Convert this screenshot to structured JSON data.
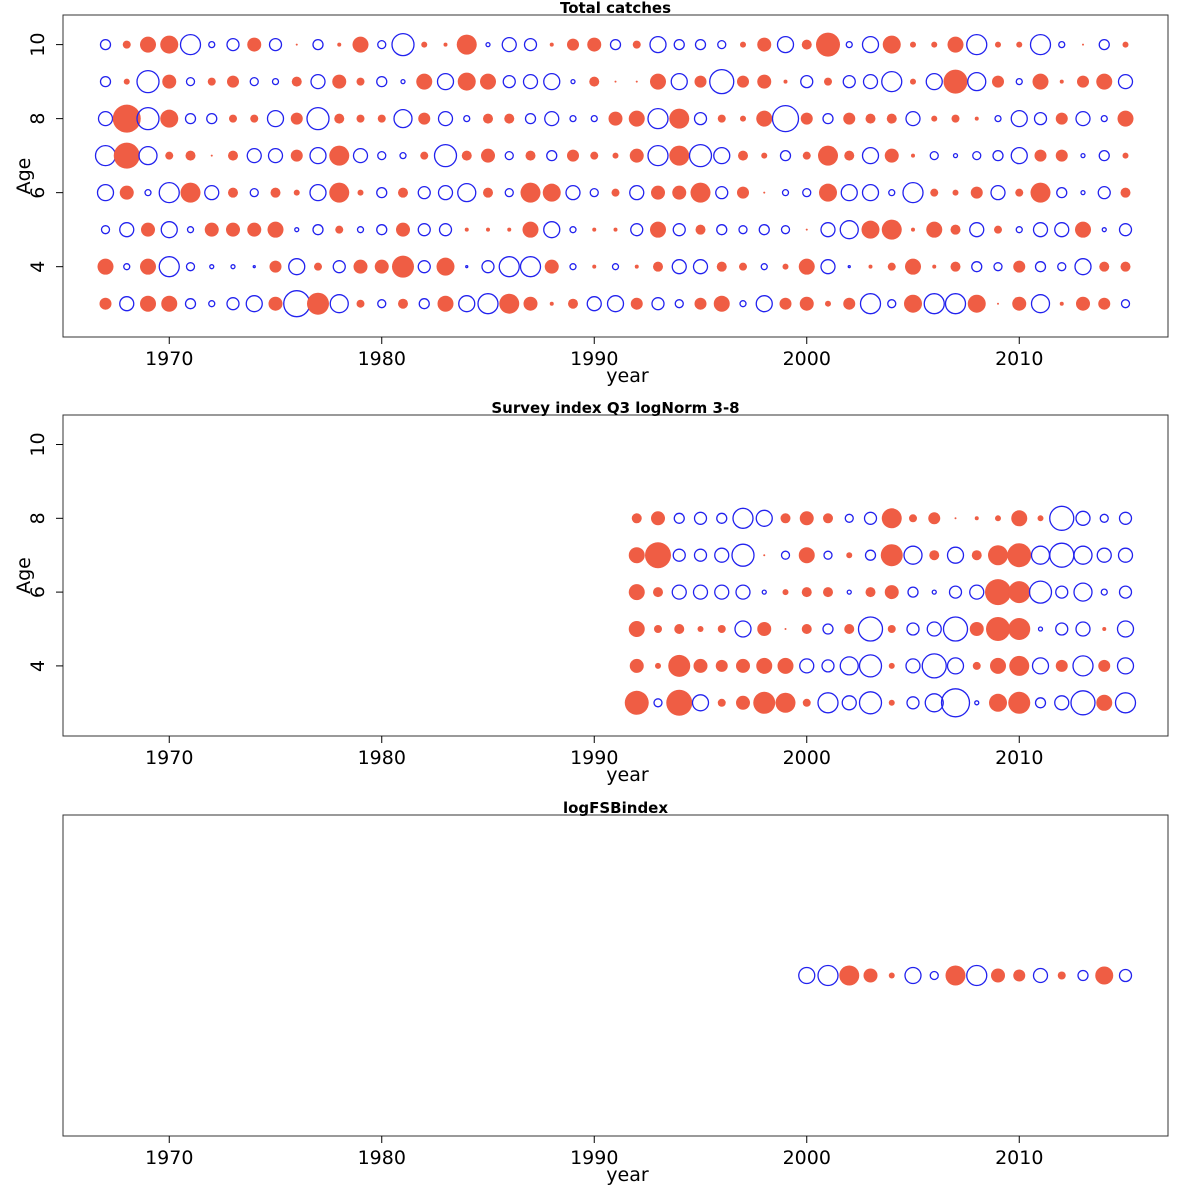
{
  "colors": {
    "positive": "#EF5D44",
    "negative": "#2222EE"
  },
  "chart_data": [
    {
      "type": "scatter",
      "subtype": "bubble",
      "title": "Total catches",
      "xlabel": "year",
      "ylabel": "Age",
      "xlim": [
        1965,
        2017
      ],
      "ylim": [
        2.1,
        10.8
      ],
      "xticks": [
        "1970",
        "1980",
        "1990",
        "2000",
        "2010"
      ],
      "yticks": [
        "4",
        "6",
        "8",
        "10"
      ],
      "show_yaxis": true,
      "encoding": "sign: positive = filled red, negative = open blue; magnitude = bubble size",
      "years": [
        1967,
        2015
      ],
      "rows": [
        {
          "age": 10,
          "values": [
            -5,
            4,
            8,
            9,
            -10,
            -3,
            -6,
            7,
            -6,
            1,
            -5,
            2,
            8,
            -4,
            -11,
            3,
            2,
            10,
            -2,
            -7,
            -6,
            2,
            6,
            7,
            -5,
            4,
            -8,
            -5,
            -5,
            -4,
            3,
            7,
            -8,
            5,
            12,
            -3,
            -8,
            9,
            3,
            3,
            8,
            -10,
            3,
            3,
            -10,
            -3,
            1,
            -5,
            3
          ]
        },
        {
          "age": 9,
          "values": [
            -5,
            3,
            -11,
            7,
            -4,
            4,
            6,
            -4,
            -3,
            5,
            -7,
            7,
            4,
            -5,
            -2,
            8,
            -8,
            9,
            8,
            -6,
            -7,
            -8,
            -2,
            5,
            1,
            1,
            8,
            -8,
            6,
            -12,
            6,
            7,
            2,
            -6,
            4,
            -6,
            -7,
            -10,
            3,
            -8,
            12,
            -9,
            6,
            -3,
            8,
            2,
            6,
            8,
            -7
          ]
        },
        {
          "age": 8,
          "values": [
            -7,
            14,
            -11,
            9,
            -5,
            -5,
            4,
            4,
            -8,
            6,
            -11,
            5,
            4,
            4,
            -9,
            6,
            -7,
            -3,
            5,
            5,
            -5,
            -7,
            -3,
            -3,
            7,
            8,
            -10,
            10,
            -6,
            4,
            3,
            8,
            -13,
            6,
            -5,
            6,
            5,
            5,
            -7,
            3,
            4,
            2,
            -3,
            -8,
            -6,
            6,
            -7,
            -3,
            8
          ]
        },
        {
          "age": 7,
          "values": [
            -10,
            13,
            -9,
            4,
            5,
            1,
            5,
            -7,
            -7,
            6,
            -8,
            10,
            -7,
            -4,
            -3,
            4,
            -11,
            5,
            7,
            -4,
            5,
            -5,
            6,
            4,
            3,
            7,
            -10,
            10,
            -11,
            -8,
            5,
            3,
            -5,
            4,
            10,
            5,
            -8,
            7,
            2,
            -4,
            -2,
            -4,
            -5,
            -8,
            6,
            6,
            -2,
            -5,
            3
          ]
        },
        {
          "age": 6,
          "values": [
            -8,
            7,
            -3,
            -10,
            10,
            -7,
            5,
            -4,
            5,
            3,
            -8,
            10,
            3,
            -5,
            5,
            -6,
            -7,
            -9,
            5,
            -4,
            10,
            9,
            -7,
            -4,
            4,
            -7,
            7,
            7,
            10,
            -6,
            6,
            1,
            -3,
            -4,
            9,
            -8,
            -8,
            -3,
            -10,
            4,
            3,
            6,
            -7,
            4,
            10,
            -5,
            -2,
            -6,
            5
          ]
        },
        {
          "age": 5,
          "values": [
            -4,
            -7,
            7,
            -8,
            -3,
            7,
            7,
            7,
            8,
            -2,
            -5,
            4,
            -3,
            -5,
            7,
            -6,
            -6,
            2,
            2,
            2,
            8,
            -8,
            -3,
            2,
            2,
            -6,
            8,
            -6,
            5,
            -5,
            -4,
            -5,
            -4,
            1,
            -7,
            -9,
            9,
            10,
            2,
            8,
            5,
            -7,
            4,
            -3,
            -7,
            -7,
            8,
            -2,
            -6
          ]
        },
        {
          "age": 4,
          "values": [
            8,
            -3,
            8,
            -10,
            -4,
            -2,
            -2,
            -1,
            6,
            -8,
            4,
            -6,
            7,
            7,
            11,
            -6,
            9,
            -1,
            -6,
            -10,
            -10,
            7,
            -3,
            2,
            -3,
            2,
            5,
            -7,
            -7,
            5,
            4,
            -3,
            3,
            8,
            -7,
            -1,
            2,
            4,
            8,
            2,
            5,
            -5,
            -4,
            6,
            -5,
            -4,
            -8,
            5,
            5
          ]
        },
        {
          "age": 3,
          "values": [
            6,
            -7,
            8,
            8,
            -5,
            -3,
            -6,
            -8,
            7,
            -13,
            11,
            -9,
            4,
            -4,
            5,
            -5,
            8,
            -8,
            -10,
            10,
            7,
            2,
            5,
            -7,
            -8,
            6,
            -6,
            -4,
            6,
            8,
            -3,
            -8,
            6,
            7,
            3,
            6,
            -10,
            -4,
            9,
            -10,
            -10,
            9,
            1,
            7,
            -9,
            2,
            7,
            6,
            -4
          ]
        }
      ]
    },
    {
      "type": "scatter",
      "subtype": "bubble",
      "title": "Survey index Q3 logNorm 3-8",
      "xlabel": "year",
      "ylabel": "Age",
      "xlim": [
        1965,
        2017
      ],
      "ylim": [
        2.1,
        10.8
      ],
      "xticks": [
        "1970",
        "1980",
        "1990",
        "2000",
        "2010"
      ],
      "yticks": [
        "4",
        "6",
        "8",
        "10"
      ],
      "show_yaxis": true,
      "encoding": "sign: positive = filled red, negative = open blue; magnitude = bubble size",
      "years": [
        1992,
        2015
      ],
      "rows": [
        {
          "age": 8,
          "values": [
            5,
            7,
            -5,
            -6,
            -5,
            -10,
            -8,
            5,
            7,
            5,
            -4,
            -6,
            10,
            4,
            6,
            1,
            2,
            3,
            8,
            3,
            -12,
            -7,
            -4,
            -6
          ]
        },
        {
          "age": 7,
          "values": [
            8,
            13,
            -6,
            -6,
            -7,
            -11,
            1,
            -4,
            8,
            -4,
            3,
            -5,
            11,
            -9,
            5,
            -8,
            5,
            10,
            12,
            -9,
            -12,
            -9,
            -7,
            -7
          ]
        },
        {
          "age": 6,
          "values": [
            8,
            5,
            -7,
            -7,
            -7,
            -7,
            -2,
            3,
            5,
            5,
            -2,
            5,
            7,
            -5,
            -2,
            -6,
            -7,
            13,
            11,
            -11,
            -6,
            -9,
            -3,
            -6
          ]
        },
        {
          "age": 5,
          "values": [
            8,
            4,
            5,
            3,
            4,
            -8,
            7,
            1,
            5,
            -5,
            5,
            -12,
            4,
            -6,
            -7,
            -12,
            7,
            12,
            11,
            -2,
            -6,
            -7,
            2,
            -8
          ]
        },
        {
          "age": 4,
          "values": [
            7,
            3,
            11,
            7,
            6,
            7,
            8,
            8,
            -7,
            -6,
            -9,
            -11,
            3,
            -7,
            -12,
            -8,
            4,
            8,
            10,
            -8,
            6,
            -10,
            6,
            -8
          ]
        },
        {
          "age": 3,
          "values": [
            12,
            -4,
            13,
            -8,
            4,
            7,
            11,
            10,
            4,
            -10,
            -7,
            -11,
            3,
            -6,
            -9,
            -14,
            -2,
            9,
            11,
            -5,
            -7,
            -12,
            8,
            -10
          ]
        }
      ]
    },
    {
      "type": "scatter",
      "subtype": "bubble",
      "title": "logFSBindex",
      "xlabel": "year",
      "ylabel": "",
      "xlim": [
        1965,
        2017
      ],
      "xticks": [
        "1970",
        "1980",
        "1990",
        "2000",
        "2010"
      ],
      "yticks": [],
      "show_yaxis": false,
      "encoding": "sign: positive = filled red, negative = open blue; magnitude = bubble size",
      "years": [
        2000,
        2015
      ],
      "rows": [
        {
          "age": null,
          "values": [
            -8,
            -10,
            10,
            7,
            3,
            -8,
            -4,
            10,
            -10,
            7,
            6,
            -7,
            4,
            -5,
            9,
            -6
          ]
        }
      ]
    }
  ]
}
